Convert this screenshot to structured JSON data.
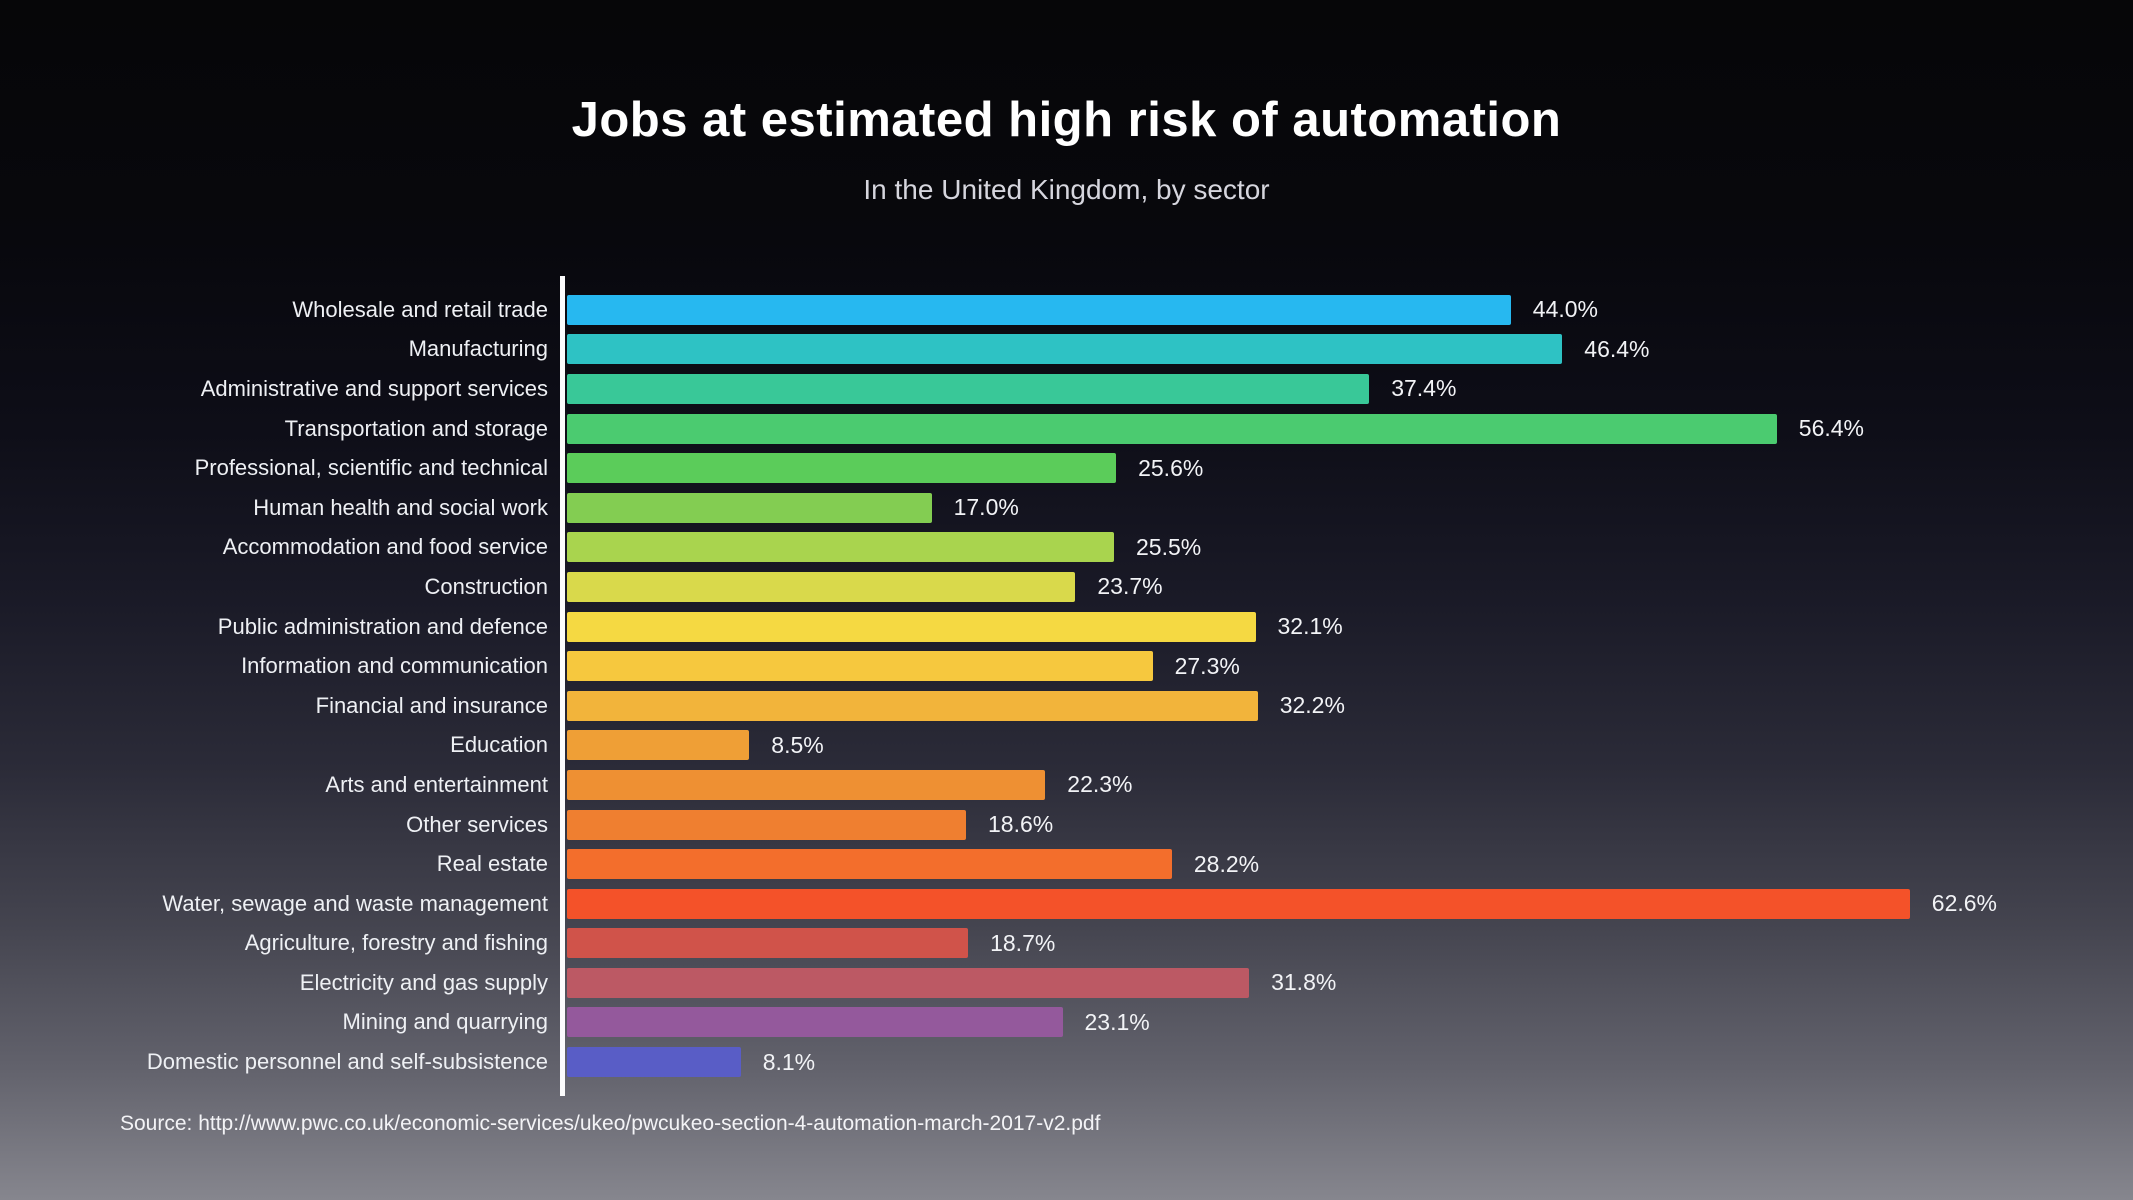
{
  "chart_data": {
    "type": "bar",
    "orientation": "horizontal",
    "title": "Jobs at estimated high risk of automation",
    "subtitle": "In the United Kingdom, by sector",
    "source": "Source: http://www.pwc.co.uk/economic-services/ukeo/pwcukeo-section-4-automation-march-2017-v2.pdf",
    "xlabel": "",
    "ylabel": "",
    "xlim": [
      0,
      65
    ],
    "grid": false,
    "legend": false,
    "value_suffix": "%",
    "categories": [
      "Wholesale and retail trade",
      "Manufacturing",
      "Administrative and support services",
      "Transportation and storage",
      "Professional, scientific and technical",
      "Human health and social work",
      "Accommodation and food service",
      "Construction",
      "Public administration and defence",
      "Information and communication",
      "Financial and insurance",
      "Education",
      "Arts and entertainment",
      "Other services",
      "Real estate",
      "Water, sewage and waste management",
      "Agriculture, forestry and fishing",
      "Electricity and gas supply",
      "Mining and quarrying",
      "Domestic personnel and self-subsistence"
    ],
    "values": [
      44.0,
      46.4,
      37.4,
      56.4,
      25.6,
      17.0,
      25.5,
      23.7,
      32.1,
      27.3,
      32.2,
      8.5,
      22.3,
      18.6,
      28.2,
      62.6,
      18.7,
      31.8,
      23.1,
      8.1
    ],
    "value_labels": [
      "44.0%",
      "46.4%",
      "37.4%",
      "56.4%",
      "25.6%",
      "17.0%",
      "25.5%",
      "23.7%",
      "32.1%",
      "27.3%",
      "32.2%",
      "8.5%",
      "22.3%",
      "18.6%",
      "28.2%",
      "62.6%",
      "18.7%",
      "31.8%",
      "23.1%",
      "8.1%"
    ],
    "bar_colors": [
      "#27b8f0",
      "#2ec2c4",
      "#39c898",
      "#4bcb70",
      "#5bcc5a",
      "#83cd52",
      "#a9d44e",
      "#d9d94b",
      "#f5d942",
      "#f6c83e",
      "#f2b43b",
      "#ef9f36",
      "#ee9033",
      "#ef7f30",
      "#f36e2c",
      "#f45229",
      "#d0534a",
      "#bc5964",
      "#94599c",
      "#595dc6"
    ]
  },
  "colors": {
    "background_top": "#060608",
    "background_bottom": "#86868e",
    "axis_line": "#fcfcfd",
    "title_text": "#ffffff",
    "subtitle_text": "#d6d6de",
    "label_text": "#eef0f4"
  }
}
